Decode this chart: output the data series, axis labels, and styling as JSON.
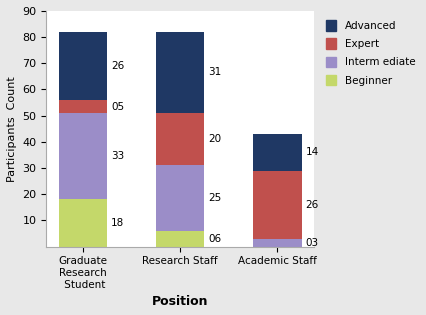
{
  "categories": [
    "Graduate\nResearch\n Student",
    "Research Staff",
    "Academic Staff"
  ],
  "beginner": [
    18,
    6,
    0
  ],
  "intermediate": [
    33,
    25,
    3
  ],
  "expert": [
    5,
    20,
    26
  ],
  "advanced": [
    26,
    31,
    14
  ],
  "label_values": {
    "beginner": [
      "18",
      "06",
      "03"
    ],
    "intermediate": [
      "33",
      "25",
      null
    ],
    "expert": [
      "05",
      "20",
      "26"
    ],
    "advanced": [
      "26",
      "31",
      "14"
    ]
  },
  "label_positions": {
    "beginner_extra": [
      null,
      null,
      3
    ],
    "show_beginner_label_for_3": true
  },
  "colors": {
    "beginner": "#c4d86a",
    "intermediate": "#9b8dc8",
    "expert": "#c0504d",
    "advanced": "#1f3864"
  },
  "legend_labels": {
    "advanced": "Advanced",
    "expert": "Expert",
    "intermediate": "Interm ediate",
    "beginner": "Beginner"
  },
  "ylabel": "Participants  Count",
  "xlabel": "Position",
  "ylim": [
    0,
    90
  ],
  "yticks": [
    10,
    20,
    30,
    40,
    50,
    60,
    70,
    80,
    90
  ],
  "fig_facecolor": "#e8e8e8",
  "ax_facecolor": "#ffffff",
  "bar_width": 0.5
}
